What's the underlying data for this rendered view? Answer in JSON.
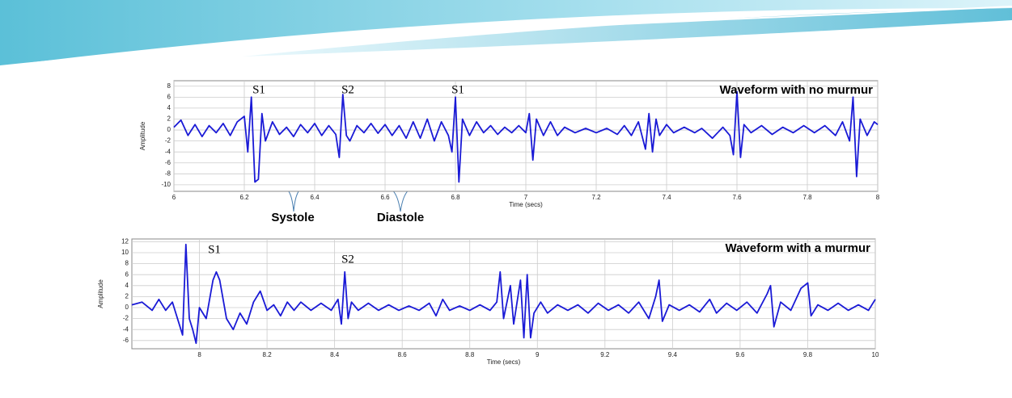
{
  "chart_data": [
    {
      "type": "line",
      "title": "Waveform with no murmur",
      "xlabel": "Time (secs)",
      "ylabel": "Amplitude",
      "color": "#1a1ad6",
      "grid": true,
      "xlim": [
        6,
        8
      ],
      "ylim": [
        -11.2,
        9
      ],
      "xticks": [
        6,
        6.2,
        6.4,
        6.6,
        6.8,
        7,
        7.2,
        7.4,
        7.6,
        7.8,
        8
      ],
      "yticks": [
        8,
        6,
        4,
        2,
        0,
        -2,
        -4,
        -6,
        -8,
        -10
      ],
      "annotations": [
        "S1",
        "S2",
        "S1",
        "Systole",
        "Diastole"
      ],
      "x": [
        6.0,
        6.02,
        6.04,
        6.06,
        6.08,
        6.1,
        6.12,
        6.14,
        6.16,
        6.18,
        6.2,
        6.21,
        6.22,
        6.23,
        6.24,
        6.25,
        6.26,
        6.28,
        6.3,
        6.32,
        6.34,
        6.36,
        6.38,
        6.4,
        6.42,
        6.44,
        6.46,
        6.47,
        6.48,
        6.49,
        6.5,
        6.52,
        6.54,
        6.56,
        6.58,
        6.6,
        6.62,
        6.64,
        6.66,
        6.68,
        6.7,
        6.72,
        6.74,
        6.76,
        6.78,
        6.79,
        6.8,
        6.81,
        6.82,
        6.84,
        6.86,
        6.88,
        6.9,
        6.92,
        6.94,
        6.96,
        6.98,
        7.0,
        7.01,
        7.02,
        7.03,
        7.05,
        7.07,
        7.09,
        7.11,
        7.14,
        7.17,
        7.2,
        7.23,
        7.26,
        7.28,
        7.3,
        7.32,
        7.34,
        7.35,
        7.36,
        7.37,
        7.38,
        7.4,
        7.42,
        7.45,
        7.48,
        7.5,
        7.53,
        7.56,
        7.58,
        7.59,
        7.6,
        7.61,
        7.62,
        7.64,
        7.67,
        7.7,
        7.73,
        7.76,
        7.79,
        7.82,
        7.85,
        7.88,
        7.9,
        7.92,
        7.93,
        7.94,
        7.95,
        7.97,
        7.99,
        8.0
      ],
      "values": [
        0.5,
        1.8,
        -1,
        1,
        -1.2,
        0.8,
        -0.5,
        1.2,
        -1,
        1.5,
        2.5,
        -4,
        6,
        -9.5,
        -9,
        3,
        -2,
        1.5,
        -0.8,
        0.5,
        -1.2,
        1,
        -0.5,
        1.2,
        -1,
        0.8,
        -0.8,
        -5,
        6.5,
        -1,
        -2,
        0.8,
        -0.5,
        1.2,
        -0.6,
        1,
        -1,
        0.8,
        -1.5,
        1.5,
        -1.5,
        2,
        -2,
        1.5,
        -1,
        -4,
        6,
        -9.5,
        2,
        -1,
        1.5,
        -0.5,
        0.8,
        -0.8,
        0.5,
        -0.5,
        0.8,
        -0.5,
        3,
        -5.5,
        2,
        -1,
        1.5,
        -1,
        0.5,
        -0.5,
        0.3,
        -0.5,
        0.3,
        -0.8,
        0.8,
        -1,
        1.5,
        -3.5,
        3,
        -4,
        2,
        -1,
        1,
        -0.5,
        0.5,
        -0.5,
        0.3,
        -1.5,
        0.5,
        -1,
        -4.5,
        7,
        -5,
        1,
        -0.5,
        0.8,
        -0.8,
        0.5,
        -0.5,
        0.8,
        -0.5,
        0.8,
        -1,
        1.5,
        -2,
        6,
        -8.5,
        2,
        -1,
        1.5,
        1
      ]
    },
    {
      "type": "line",
      "title": "Waveform with a murmur",
      "xlabel": "Time (secs)",
      "ylabel": "Amplitude",
      "color": "#1a1ad6",
      "grid": true,
      "xlim": [
        7.8,
        10
      ],
      "ylim": [
        -7.5,
        12.5
      ],
      "xticks": [
        8,
        8.2,
        8.4,
        8.6,
        8.8,
        9,
        9.2,
        9.4,
        9.6,
        9.8,
        10
      ],
      "yticks": [
        12,
        10,
        8,
        6,
        4,
        2,
        0,
        -2,
        -4,
        -6
      ],
      "annotations": [
        "S1",
        "S2"
      ],
      "x": [
        7.8,
        7.83,
        7.86,
        7.88,
        7.9,
        7.92,
        7.94,
        7.95,
        7.96,
        7.97,
        7.98,
        7.99,
        8.0,
        8.02,
        8.04,
        8.05,
        8.06,
        8.08,
        8.1,
        8.12,
        8.14,
        8.16,
        8.18,
        8.2,
        8.22,
        8.24,
        8.26,
        8.28,
        8.3,
        8.33,
        8.36,
        8.39,
        8.41,
        8.42,
        8.43,
        8.44,
        8.45,
        8.47,
        8.5,
        8.53,
        8.56,
        8.59,
        8.62,
        8.65,
        8.68,
        8.7,
        8.72,
        8.74,
        8.77,
        8.8,
        8.83,
        8.86,
        8.88,
        8.89,
        8.9,
        8.92,
        8.93,
        8.95,
        8.96,
        8.97,
        8.98,
        8.99,
        9.01,
        9.03,
        9.06,
        9.09,
        9.12,
        9.15,
        9.18,
        9.21,
        9.24,
        9.27,
        9.3,
        9.33,
        9.35,
        9.36,
        9.37,
        9.39,
        9.42,
        9.45,
        9.48,
        9.51,
        9.53,
        9.56,
        9.59,
        9.62,
        9.65,
        9.68,
        9.69,
        9.7,
        9.72,
        9.75,
        9.78,
        9.8,
        9.81,
        9.83,
        9.86,
        9.89,
        9.92,
        9.95,
        9.98,
        10.0
      ],
      "values": [
        0.5,
        1,
        -0.5,
        1.5,
        -0.5,
        1,
        -3,
        -5,
        11.5,
        -2,
        -4,
        -6.5,
        0,
        -2,
        5,
        6.5,
        5,
        -2,
        -4,
        -1,
        -3,
        1,
        3,
        -0.5,
        0.5,
        -1.5,
        1,
        -0.5,
        1,
        -0.5,
        0.8,
        -0.5,
        1.5,
        -3,
        6.5,
        -2,
        1,
        -0.5,
        0.8,
        -0.5,
        0.5,
        -0.5,
        0.3,
        -0.5,
        0.8,
        -1.5,
        1.5,
        -0.5,
        0.3,
        -0.5,
        0.5,
        -0.5,
        1,
        6.5,
        -2,
        4,
        -3,
        5,
        -5.5,
        6,
        -5.5,
        -1,
        1,
        -1,
        0.5,
        -0.5,
        0.5,
        -1,
        0.8,
        -0.5,
        0.5,
        -1,
        1,
        -2,
        2,
        5,
        -2.5,
        0.5,
        -0.5,
        0.5,
        -0.8,
        1.5,
        -1,
        0.8,
        -0.5,
        1,
        -1,
        2.5,
        4,
        -3.5,
        1,
        -0.5,
        3.5,
        4.5,
        -1.5,
        0.5,
        -0.5,
        0.8,
        -0.5,
        0.5,
        -0.5,
        1.5
      ]
    }
  ]
}
